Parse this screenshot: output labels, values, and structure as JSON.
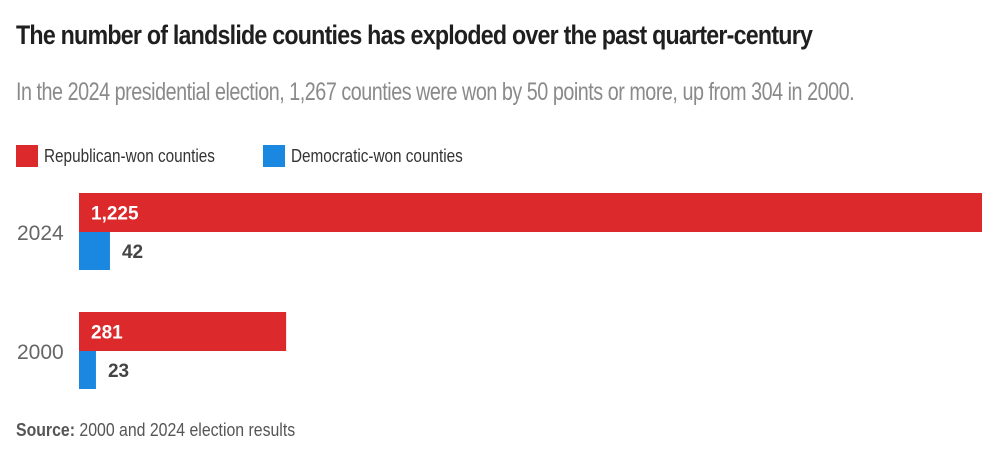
{
  "colors": {
    "republican": "#dc2a2c",
    "democratic": "#1a88e0"
  },
  "chart_data": {
    "type": "bar",
    "orientation": "horizontal",
    "title": "The number of landslide counties has exploded over the past quarter-century",
    "subtitle": "In the 2024 presidential election, 1,267 counties were won by 50 points or more, up from 304 in 2000.",
    "categories": [
      "2024",
      "2000"
    ],
    "series": [
      {
        "name": "Republican-won counties",
        "values": [
          1225,
          281
        ],
        "labels": [
          "1,225",
          "281"
        ]
      },
      {
        "name": "Democratic-won counties",
        "values": [
          42,
          23
        ],
        "labels": [
          "42",
          "23"
        ]
      }
    ],
    "xlim": [
      0,
      1225
    ],
    "grid": false,
    "legend": "top-left",
    "source_label": "Source:",
    "source_text": " 2000 and 2024 election results"
  }
}
